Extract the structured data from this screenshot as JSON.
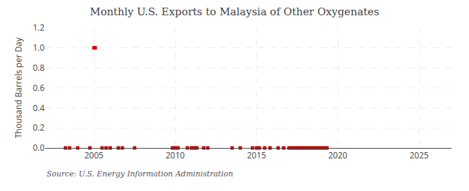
{
  "chart_data": {
    "type": "scatter",
    "title": "Monthly U.S. Exports to Malaysia of Other Oxygenates",
    "ylabel": "Thousand Barrels per Day",
    "annotations": [
      "Source: U.S. Energy Information Administration"
    ],
    "color": "#cc0000",
    "marker": "square",
    "grid": true,
    "xlim": [
      2002.0,
      2027.0
    ],
    "ylim": [
      0.0,
      1.2
    ],
    "xticks": [
      2005,
      2010,
      2015,
      2020,
      2025
    ],
    "yticks": [
      {
        "value": 0.0,
        "label": "0.0"
      },
      0.2,
      0.4,
      0.6,
      0.8,
      {
        "value": 1.0,
        "label": "1.0"
      },
      1.2
    ],
    "x": [
      2003.25,
      2003.5,
      2004.0,
      2004.75,
      2005.0,
      2005.08,
      2005.5,
      2005.75,
      2006.0,
      2006.5,
      2006.75,
      2007.5,
      2009.83,
      2010.0,
      2010.17,
      2010.75,
      2011.0,
      2011.17,
      2011.33,
      2011.75,
      2012.0,
      2013.5,
      2014.0,
      2014.75,
      2015.0,
      2015.17,
      2015.5,
      2015.83,
      2016.33,
      2016.67,
      2017.0,
      2017.17,
      2017.33,
      2017.5,
      2017.67,
      2017.83,
      2018.0,
      2018.17,
      2018.33,
      2018.5,
      2018.67,
      2018.83,
      2019.0,
      2019.17,
      2019.33
    ],
    "values": [
      0.0,
      0.0,
      0.0,
      0.0,
      1.0,
      1.0,
      0.0,
      0.0,
      0.0,
      0.0,
      0.0,
      0.0,
      0.0,
      0.0,
      0.0,
      0.0,
      0.0,
      0.0,
      0.0,
      0.0,
      0.0,
      0.0,
      0.0,
      0.0,
      0.0,
      0.0,
      0.0,
      0.0,
      0.0,
      0.0,
      0.0,
      0.0,
      0.0,
      0.0,
      0.0,
      0.0,
      0.0,
      0.0,
      0.0,
      0.0,
      0.0,
      0.0,
      0.0,
      0.0,
      0.0
    ]
  }
}
